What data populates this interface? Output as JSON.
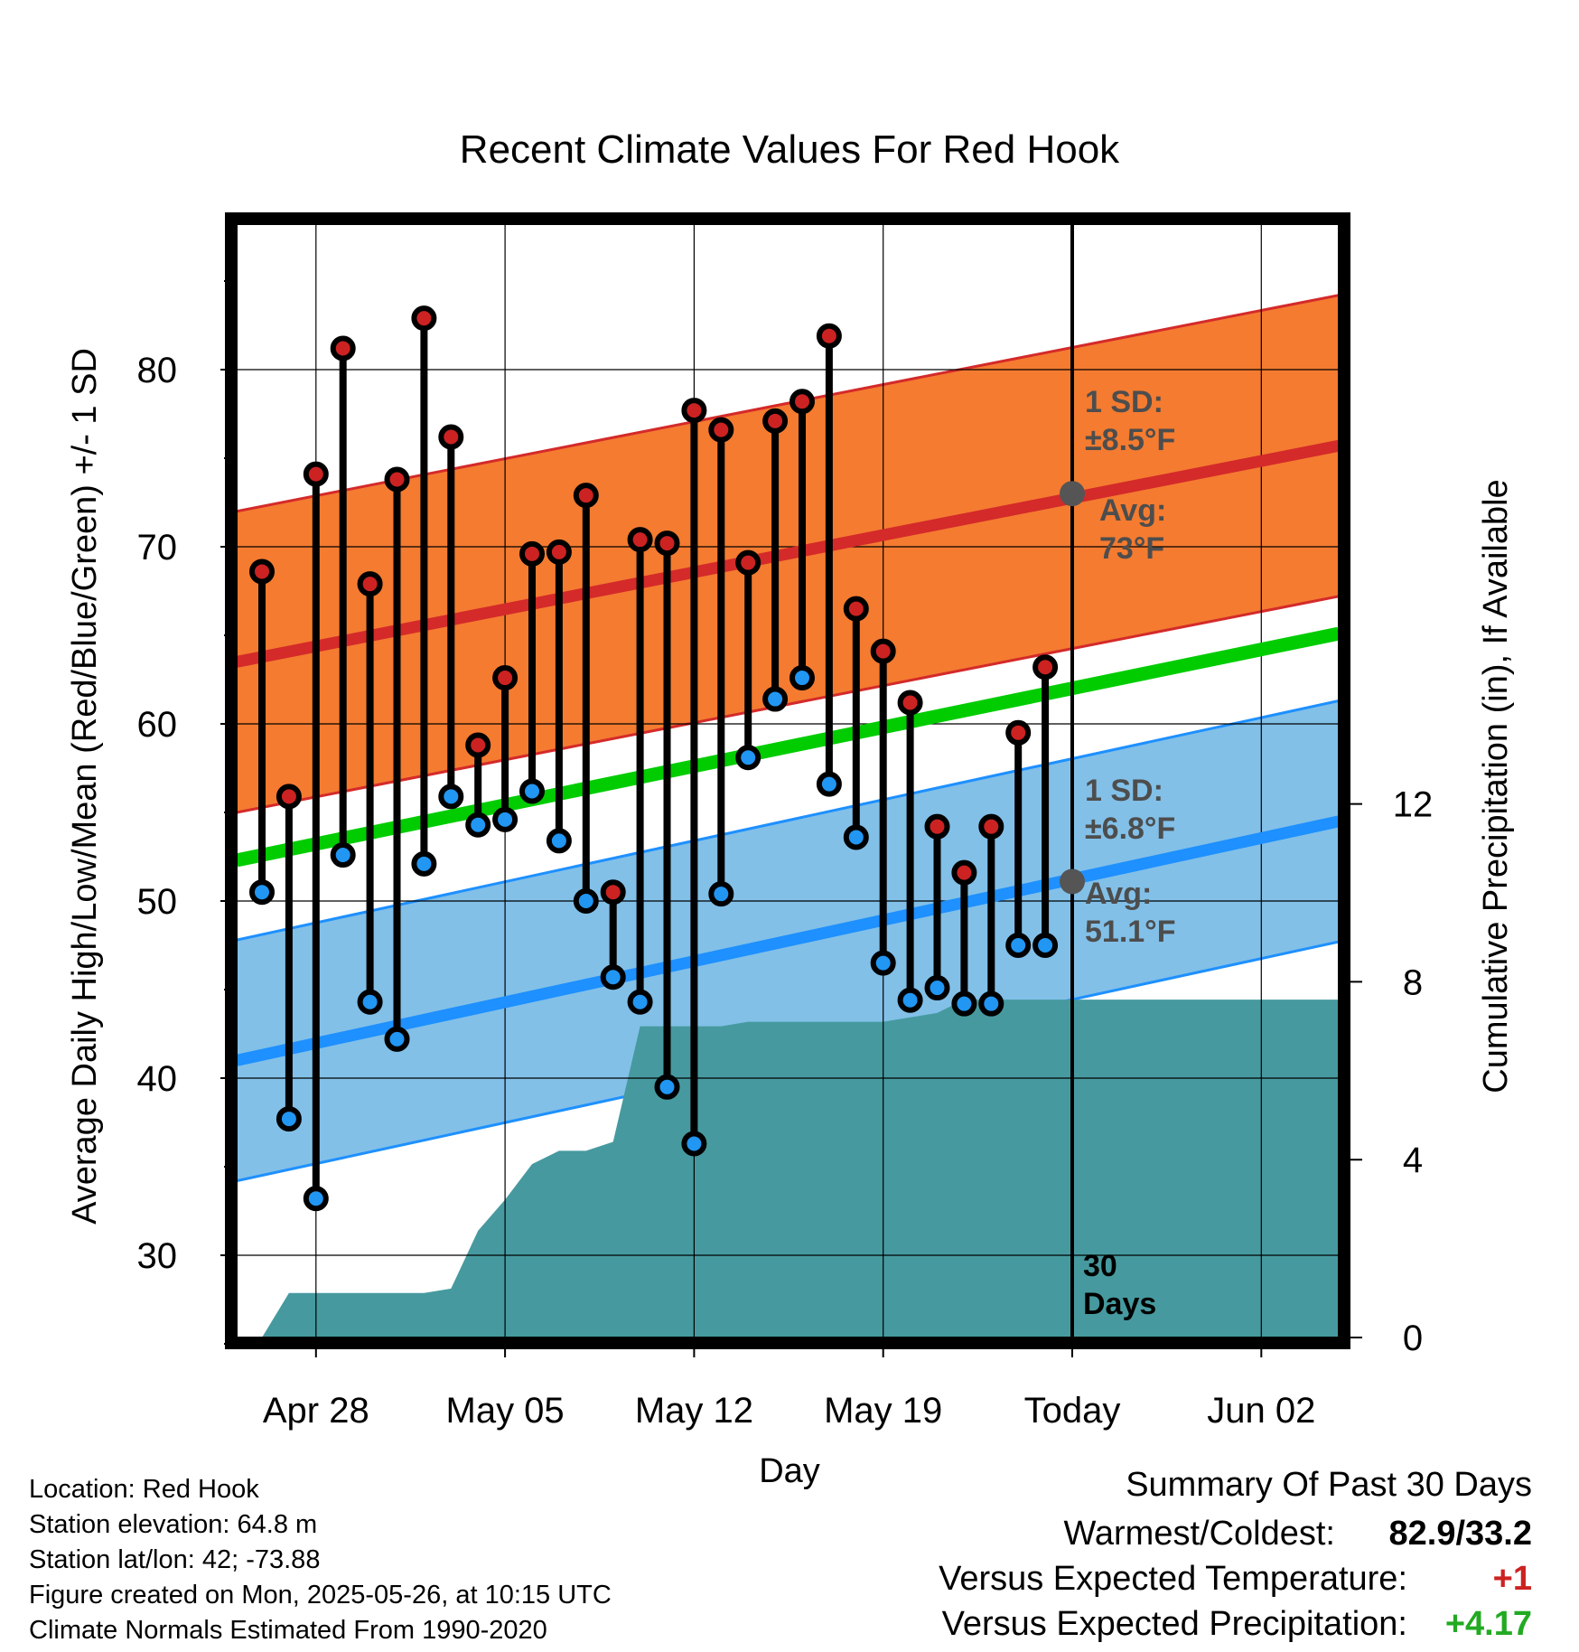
{
  "chart_data": {
    "type": "line",
    "title": "Recent Climate Values For Red Hook",
    "xlabel": "Day",
    "ylabel": "Average Daily High/Low/Mean (Red/Blue/Green) +/- 1 SD",
    "y2label": "Cumulative Precipitation (in), If Available",
    "x_ticks": [
      "Apr 28",
      "May 05",
      "May 12",
      "May 19",
      "Today",
      "Jun 02"
    ],
    "y_ticks": [
      "30",
      "40",
      "50",
      "60",
      "70",
      "80"
    ],
    "y2_ticks": [
      "0",
      "4",
      "8",
      "12"
    ],
    "ylim": [
      25,
      87
    ],
    "y2lim": [
      0,
      22
    ],
    "days": [
      "Apr 26",
      "Apr 27",
      "Apr 28",
      "Apr 29",
      "Apr 30",
      "May 01",
      "May 02",
      "May 03",
      "May 04",
      "May 05",
      "May 06",
      "May 07",
      "May 08",
      "May 09",
      "May 10",
      "May 11",
      "May 12",
      "May 13",
      "May 14",
      "May 15",
      "May 16",
      "May 17",
      "May 18",
      "May 19",
      "May 20",
      "May 21",
      "May 22",
      "May 23",
      "May 24",
      "May 25"
    ],
    "highs": [
      68.6,
      55.9,
      74.1,
      81.2,
      67.9,
      73.8,
      82.9,
      76.2,
      58.8,
      62.6,
      69.6,
      69.7,
      72.9,
      50.5,
      70.4,
      70.2,
      77.7,
      76.6,
      69.1,
      77.1,
      78.2,
      81.9,
      66.5,
      64.1,
      61.2,
      54.2,
      51.6,
      54.2,
      59.5,
      63.2
    ],
    "lows": [
      50.5,
      37.7,
      33.2,
      52.6,
      44.3,
      42.2,
      52.1,
      55.9,
      54.3,
      54.6,
      56.2,
      53.4,
      50.0,
      45.7,
      44.3,
      39.5,
      36.3,
      50.4,
      58.1,
      61.4,
      62.6,
      56.6,
      53.6,
      46.5,
      44.4,
      45.1,
      44.2,
      44.2,
      47.5,
      47.5
    ],
    "normal_high": {
      "start": 63.5,
      "end": 75.7,
      "sd": 8.5,
      "today": 73.0
    },
    "normal_low": {
      "start": 41.0,
      "end": 54.5,
      "sd": 6.8,
      "today": 51.1
    },
    "normal_mean": {
      "start": 52.3,
      "end": 65.1
    },
    "precip_cumulative": [
      0.0,
      1.0,
      1.0,
      1.0,
      1.0,
      1.0,
      1.0,
      1.1,
      2.4,
      3.1,
      3.9,
      4.2,
      4.2,
      4.4,
      7.0,
      7.0,
      7.0,
      7.0,
      7.1,
      7.1,
      7.1,
      7.1,
      7.1,
      7.1,
      7.2,
      7.3,
      7.6,
      7.6,
      7.6,
      7.6
    ],
    "annotations": {
      "high_sd": [
        "1 SD:",
        "±8.5°F"
      ],
      "high_avg": [
        "Avg:",
        "73°F"
      ],
      "low_sd": [
        "1 SD:",
        "±6.8°F"
      ],
      "low_avg": [
        "Avg:",
        "51.1°F"
      ],
      "window": [
        "30",
        "Days"
      ]
    },
    "colors": {
      "high_band": "#f47b30",
      "high_line": "#d42a2a",
      "high_marker": "#cc2222",
      "low_band": "#82c0e8",
      "low_line": "#1e90ff",
      "low_marker": "#2196f3",
      "mean_line": "#00cc00",
      "precip": "#469a9f",
      "annotation": "#4d4d4d"
    },
    "grid": true
  },
  "info": {
    "location": "Location: Red Hook",
    "elevation": "Station elevation: 64.8 m",
    "latlon": "Station lat/lon: 42; -73.88",
    "created": "Figure created on Mon, 2025-05-26, at 10:15 UTC",
    "normals": "Climate Normals Estimated From 1990-2020"
  },
  "summary": {
    "title": "Summary Of Past 30 Days",
    "warm_cold_label": "Warmest/Coldest:",
    "warm_cold_value": "82.9/33.2",
    "temp_label": "Versus Expected Temperature:",
    "temp_value": "+1",
    "precip_label": "Versus Expected Precipitation:",
    "precip_value": "+4.17",
    "temp_color": "#cc2222",
    "precip_color": "#22aa22"
  }
}
